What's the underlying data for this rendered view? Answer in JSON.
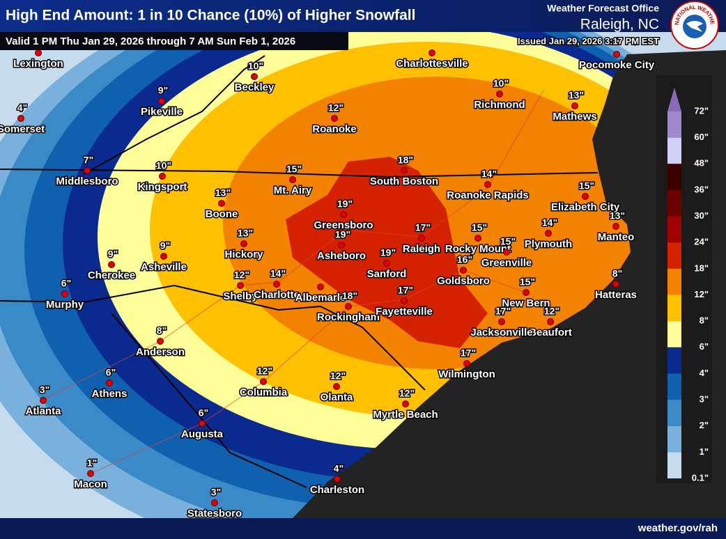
{
  "header": {
    "title": "High End Amount: 1 in 10 Chance (10%) of Higher Snowfall",
    "valid": "Valid 1 PM Thu Jan 29, 2026 through 7 AM Sun Feb 1, 2026",
    "office_label": "Weather Forecast Office",
    "office": "Raleigh, NC",
    "issued": "Issued Jan 29, 2026 3:17 PM EST",
    "logo_text": "NATIONAL WEATHER SERVICE"
  },
  "legend": {
    "labels": [
      "72\"",
      "60\"",
      "48\"",
      "36\"",
      "30\"",
      "24\"",
      "18\"",
      "12\"",
      "8\"",
      "6\"",
      "4\"",
      "3\"",
      "2\"",
      "1\"",
      "0.1\""
    ],
    "colors": [
      "#8a6ab8",
      "#a08ad0",
      "#d0d0f8",
      "#3d0000",
      "#6b0000",
      "#a00000",
      "#d42200",
      "#f28200",
      "#ffc000",
      "#ffff99",
      "#0a2a90",
      "#1060b0",
      "#3a8ac8",
      "#7ab0dc",
      "#c6dcec"
    ]
  },
  "cities": [
    {
      "name": "Lexington"
    },
    {
      "name": "Somerset",
      "amount": "4\""
    },
    {
      "name": "Middlesboro",
      "amount": "7\""
    },
    {
      "name": "Pikeville",
      "amount": "9\""
    },
    {
      "name": "Beckley",
      "amount": "10\""
    },
    {
      "name": "Charlottesville"
    },
    {
      "name": "Pocomoke City"
    },
    {
      "name": "Richmond",
      "amount": "10\""
    },
    {
      "name": "Mathews",
      "amount": "13\""
    },
    {
      "name": "Roanoke",
      "amount": "12\""
    },
    {
      "name": "Kingsport",
      "amount": "10\""
    },
    {
      "name": "Mt. Airy",
      "amount": "15\""
    },
    {
      "name": "South Boston",
      "amount": "18\""
    },
    {
      "name": "Roanoke Rapids",
      "amount": "14\""
    },
    {
      "name": "Elizabeth City",
      "amount": "15\""
    },
    {
      "name": "Boone",
      "amount": "13\""
    },
    {
      "name": "Greensboro",
      "amount": "19\""
    },
    {
      "name": "Manteo",
      "amount": "13\""
    },
    {
      "name": "Hickory",
      "amount": "13\""
    },
    {
      "name": "Asheville",
      "amount": "9\""
    },
    {
      "name": "Cherokee",
      "amount": "9\""
    },
    {
      "name": "Asheboro",
      "amount": "19\""
    },
    {
      "name": "Sanford",
      "amount": "19\""
    },
    {
      "name": "Raleigh",
      "amount": "17\""
    },
    {
      "name": "Rocky Mount",
      "amount": "15\""
    },
    {
      "name": "Plymouth",
      "amount": "14\""
    },
    {
      "name": "Greenville",
      "amount": "15\""
    },
    {
      "name": "Murphy",
      "amount": "6\""
    },
    {
      "name": "Shelby",
      "amount": "12\""
    },
    {
      "name": "Charlotte",
      "amount": "14\""
    },
    {
      "name": "Albemarle"
    },
    {
      "name": "Goldsboro",
      "amount": "16\""
    },
    {
      "name": "Hatteras",
      "amount": "8\""
    },
    {
      "name": "Rockingham",
      "amount": "18\""
    },
    {
      "name": "Fayetteville",
      "amount": "17\""
    },
    {
      "name": "New Bern",
      "amount": "15\""
    },
    {
      "name": "Beaufort",
      "amount": "12\""
    },
    {
      "name": "Jacksonville",
      "amount": "17\""
    },
    {
      "name": "Anderson",
      "amount": "8\""
    },
    {
      "name": "Athens",
      "amount": "6\""
    },
    {
      "name": "Atlanta",
      "amount": "3\""
    },
    {
      "name": "Columbia",
      "amount": "12\""
    },
    {
      "name": "Olanta",
      "amount": "12\""
    },
    {
      "name": "Wilmington",
      "amount": "17\""
    },
    {
      "name": "Myrtle Beach",
      "amount": "12\""
    },
    {
      "name": "Augusta",
      "amount": "6\""
    },
    {
      "name": "Macon",
      "amount": "1\""
    },
    {
      "name": "Charleston",
      "amount": "4\""
    },
    {
      "name": "Statesboro",
      "amount": "3\""
    }
  ],
  "footer": {
    "url": "weather.gov/rah"
  }
}
